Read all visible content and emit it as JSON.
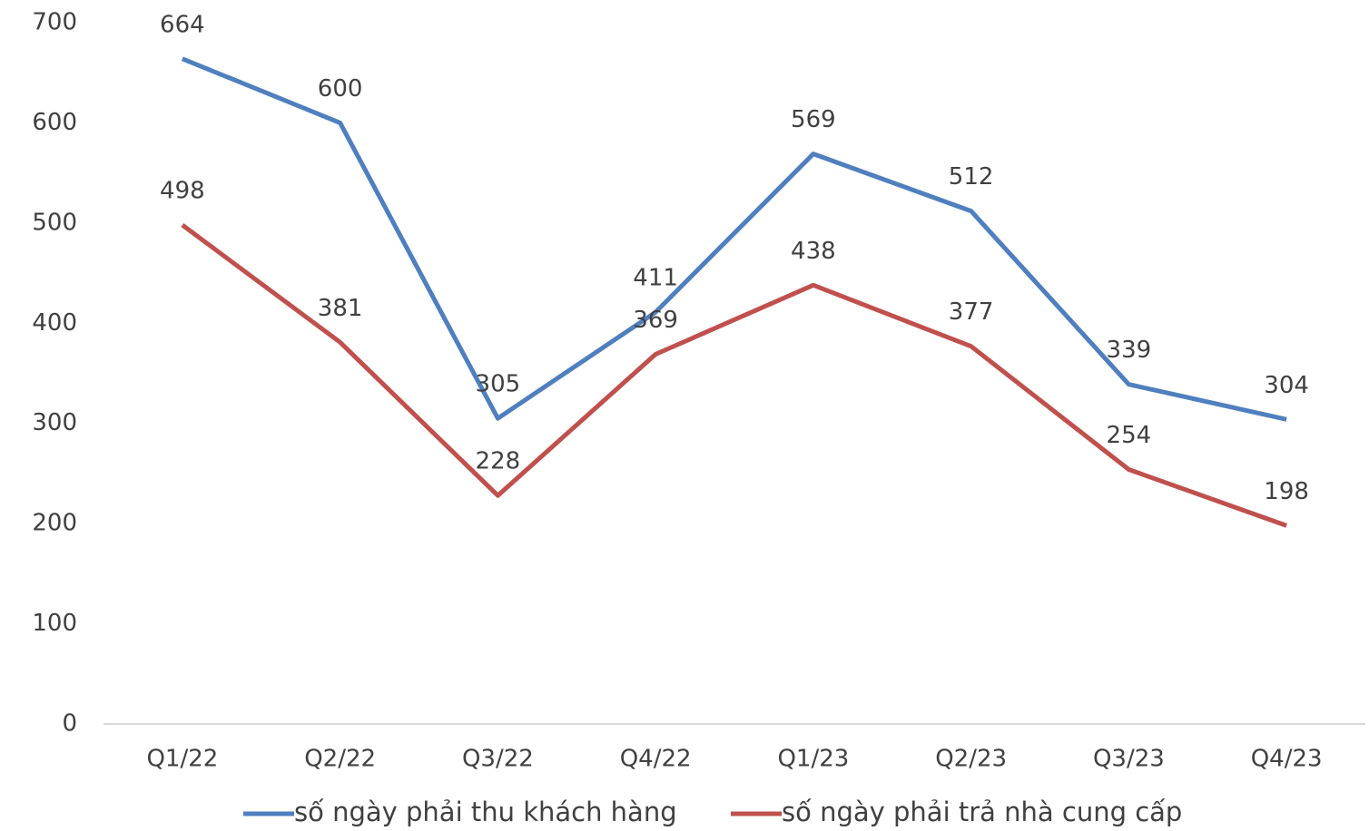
{
  "chart_data": {
    "type": "line",
    "categories": [
      "Q1/22",
      "Q2/22",
      "Q3/22",
      "Q4/22",
      "Q1/23",
      "Q2/23",
      "Q3/23",
      "Q4/23"
    ],
    "series": [
      {
        "name": "số ngày phải thu khách hàng",
        "color": "#4f7fbf",
        "values": [
          664,
          600,
          305,
          411,
          569,
          512,
          339,
          304
        ]
      },
      {
        "name": "số ngày phải trả nhà cung cấp",
        "color": "#c0504d",
        "values": [
          498,
          381,
          228,
          369,
          438,
          377,
          254,
          198
        ]
      }
    ],
    "ylim": [
      0,
      700
    ],
    "yticks": [
      0,
      100,
      200,
      300,
      400,
      500,
      600,
      700
    ],
    "grid": false,
    "legend": "bottom"
  }
}
